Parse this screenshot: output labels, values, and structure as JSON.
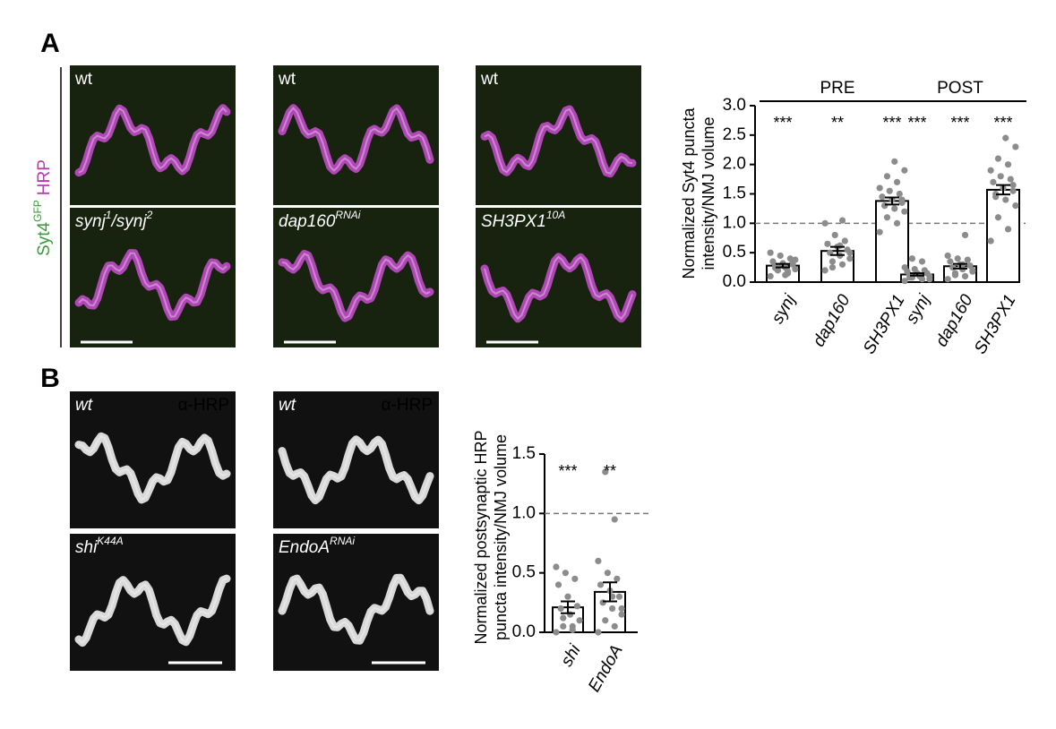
{
  "figure": {
    "panel_labels": [
      "A",
      "B"
    ],
    "stain": {
      "marker": "Syt4",
      "marker_sup": "GFP",
      "counterstain": "HRP"
    },
    "images_a": [
      {
        "label": [
          {
            "t": "wt"
          }
        ],
        "italic": false
      },
      {
        "label": [
          {
            "t": "wt"
          }
        ],
        "italic": false
      },
      {
        "label": [
          {
            "t": "wt"
          }
        ],
        "italic": false
      },
      {
        "label": [
          {
            "t": "synj"
          },
          {
            "s": "1"
          },
          {
            "t": "/synj"
          },
          {
            "s": "2"
          }
        ],
        "italic": true
      },
      {
        "label": [
          {
            "t": "dap160"
          },
          {
            "s": "RNAi"
          }
        ],
        "italic": true
      },
      {
        "label": [
          {
            "t": "SH3PX1"
          },
          {
            "s": "10A"
          }
        ],
        "italic": true
      }
    ],
    "images_b": [
      {
        "label": [
          {
            "t": "wt"
          }
        ],
        "stain": "α-HRP"
      },
      {
        "label": [
          {
            "t": "wt"
          }
        ],
        "stain": "α-HRP"
      },
      {
        "label": [
          {
            "t": "shi"
          },
          {
            "s": "K44A"
          }
        ]
      },
      {
        "label": [
          {
            "t": "EndoA"
          },
          {
            "s": "RNAi"
          }
        ]
      }
    ]
  },
  "chart_data": [
    {
      "type": "bar",
      "ylabel": [
        "Normalized Syt4 puncta",
        "intensity/NMJ volume"
      ],
      "categories": [
        "synj",
        "dap160",
        "SH3PX1",
        "synj",
        "dap160",
        "SH3PX1"
      ],
      "group_labels": [
        "PRE",
        "PRE",
        "PRE",
        "POST",
        "POST",
        "POST"
      ],
      "values": [
        0.28,
        0.53,
        1.38,
        0.13,
        0.27,
        1.57
      ],
      "errors": [
        0.03,
        0.07,
        0.06,
        0.02,
        0.04,
        0.08
      ],
      "annotations": [
        "***",
        "**",
        "***",
        "***",
        "***",
        "***"
      ],
      "points": [
        [
          0.1,
          0.15,
          0.2,
          0.22,
          0.25,
          0.28,
          0.3,
          0.32,
          0.35,
          0.4,
          0.45,
          0.5,
          0.18,
          0.27,
          0.38,
          0.12,
          0.24,
          0.33
        ],
        [
          0.2,
          0.3,
          0.35,
          0.4,
          0.45,
          0.5,
          0.55,
          0.6,
          0.65,
          0.7,
          0.8,
          1.0,
          1.05,
          0.25,
          0.5,
          0.62
        ],
        [
          0.85,
          1.0,
          1.1,
          1.2,
          1.25,
          1.3,
          1.35,
          1.4,
          1.45,
          1.5,
          1.55,
          1.6,
          1.7,
          1.8,
          1.9,
          2.05,
          1.3,
          1.4
        ],
        [
          0.02,
          0.05,
          0.08,
          0.1,
          0.12,
          0.12,
          0.15,
          0.15,
          0.18,
          0.2,
          0.22,
          0.25,
          0.35,
          0.4,
          0.05,
          0.1,
          0.08
        ],
        [
          0.05,
          0.1,
          0.15,
          0.2,
          0.22,
          0.25,
          0.28,
          0.3,
          0.35,
          0.38,
          0.4,
          0.45,
          0.8,
          0.12,
          0.18,
          0.3
        ],
        [
          0.7,
          0.9,
          1.1,
          1.3,
          1.4,
          1.5,
          1.55,
          1.6,
          1.7,
          1.75,
          1.8,
          1.9,
          2.0,
          2.1,
          2.3,
          2.45,
          1.45,
          1.65
        ]
      ],
      "reference_line": 1,
      "color": "#ffffff",
      "point_color": "#8c8c8c",
      "ylim": [
        0,
        3
      ],
      "yticks": [
        {
          "value": 0,
          "label": "0.0"
        },
        0.5,
        {
          "value": 1,
          "label": "1.0"
        },
        1.5,
        {
          "value": 2,
          "label": "2.0"
        },
        2.5,
        {
          "value": 3,
          "label": "3.0"
        }
      ]
    },
    {
      "type": "bar",
      "ylabel": [
        "Normalized postsynaptic HRP",
        "puncta intensity/NMJ volume"
      ],
      "categories": [
        "shi",
        "EndoA"
      ],
      "values": [
        0.21,
        0.34
      ],
      "errors": [
        0.05,
        0.08
      ],
      "annotations": [
        "***",
        "**"
      ],
      "points": [
        [
          0.0,
          0.02,
          0.05,
          0.1,
          0.15,
          0.2,
          0.22,
          0.3,
          0.4,
          0.45,
          0.5,
          0.55,
          0.05,
          0.12
        ],
        [
          0.0,
          0.05,
          0.1,
          0.15,
          0.2,
          0.25,
          0.3,
          0.35,
          0.4,
          0.45,
          0.5,
          0.6,
          0.95,
          1.35,
          0.2,
          0.3
        ]
      ],
      "reference_line": 1,
      "color": "#ffffff",
      "point_color": "#8c8c8c",
      "ylim": [
        0,
        1.5
      ],
      "yticks": [
        {
          "value": 0,
          "label": "0.0"
        },
        0.5,
        {
          "value": 1,
          "label": "1.0"
        },
        1.5
      ]
    }
  ]
}
